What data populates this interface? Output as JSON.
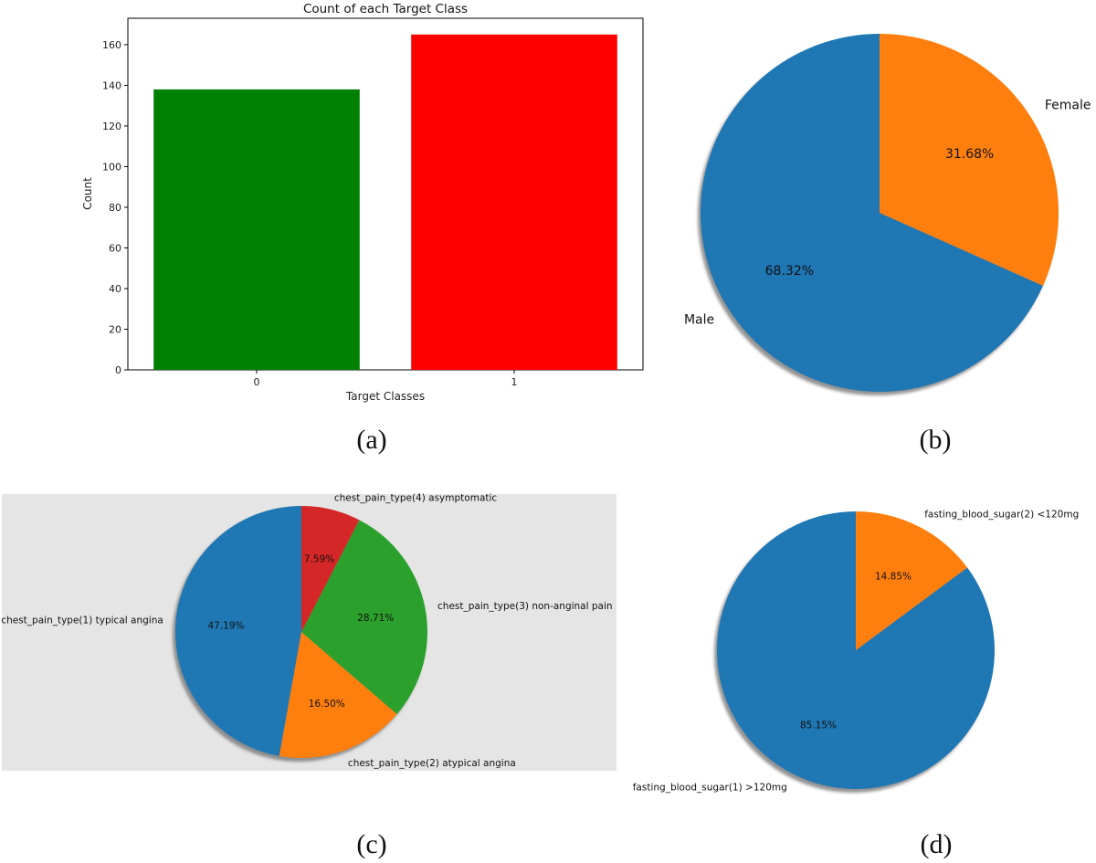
{
  "captions": [
    "(a)",
    "(b)",
    "(c)",
    "(d)"
  ],
  "chart_data": [
    {
      "type": "bar",
      "title": "Count of each Target Class",
      "xlabel": "Target Classes",
      "ylabel": "Count",
      "categories": [
        "0",
        "1"
      ],
      "values": [
        138,
        165
      ],
      "colors": [
        "#008000",
        "#ff0000"
      ],
      "ylim": [
        0,
        173
      ],
      "yticks": [
        "0",
        "20",
        "40",
        "60",
        "80",
        "100",
        "120",
        "140",
        "160"
      ],
      "grid": false
    },
    {
      "type": "pie",
      "labels": [
        "Male",
        "Female"
      ],
      "values": [
        68.32,
        31.68
      ],
      "value_labels": [
        "68.32%",
        "31.68%"
      ],
      "colors": [
        "#1f77b4",
        "#ff7f0e"
      ],
      "shadow": true
    },
    {
      "type": "pie",
      "labels": [
        "chest_pain_type(1) typical angina",
        "chest_pain_type(2) atypical angina",
        "chest_pain_type(3) non-anginal pain",
        "chest_pain_type(4) asymptomatic"
      ],
      "values": [
        47.19,
        16.5,
        28.71,
        7.59
      ],
      "value_labels": [
        "47.19%",
        "16.50%",
        "28.71%",
        "7.59%"
      ],
      "colors": [
        "#1f77b4",
        "#ff7f0e",
        "#2ca02c",
        "#d62728"
      ],
      "background": "#e5e5e5",
      "shadow": true
    },
    {
      "type": "pie",
      "labels": [
        "fasting_blood_sugar(1) >120mg",
        "fasting_blood_sugar(2) <120mg"
      ],
      "values": [
        85.15,
        14.85
      ],
      "value_labels": [
        "85.15%",
        "14.85%"
      ],
      "colors": [
        "#1f77b4",
        "#ff7f0e"
      ],
      "shadow": true
    }
  ]
}
